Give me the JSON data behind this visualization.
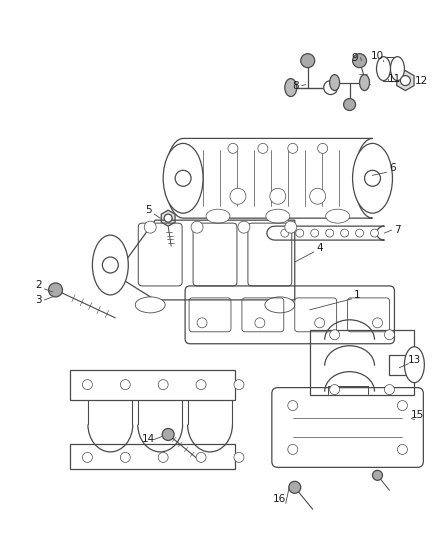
{
  "bg_color": "#ffffff",
  "line_color": "#4a4a4a",
  "text_color": "#1a1a1a",
  "figsize": [
    4.38,
    5.33
  ],
  "dpi": 100
}
